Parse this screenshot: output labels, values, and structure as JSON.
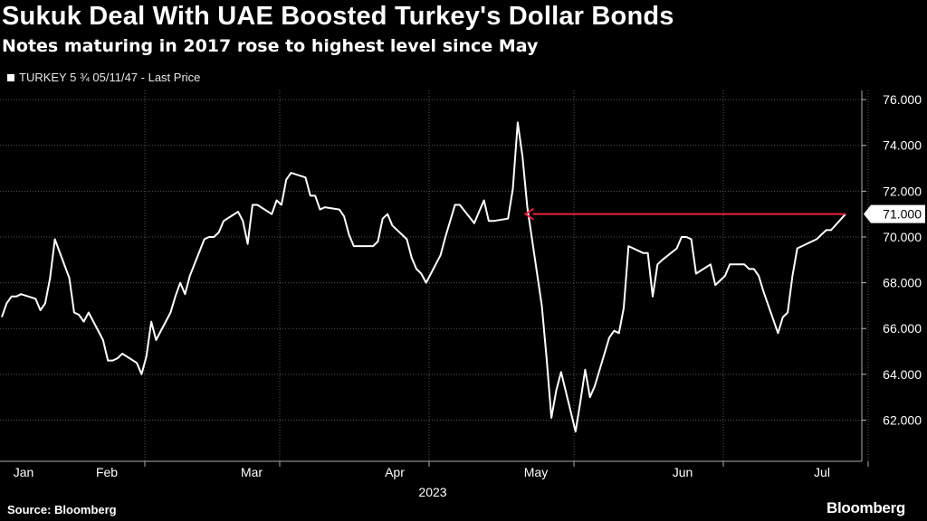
{
  "header": {
    "title": "Sukuk Deal With UAE Boosted Turkey's Dollar Bonds",
    "subtitle": "Notes maturing in 2017 rose to highest level since May"
  },
  "footer": {
    "source": "Source: Bloomberg",
    "logo": "Bloomberg"
  },
  "chart_data": {
    "type": "line",
    "title": "Sukuk Deal With UAE Boosted Turkey's Dollar Bonds",
    "subtitle": "Notes maturing in 2017 rose to highest level since May",
    "legend": {
      "placement": "top-left",
      "entries": [
        "TURKEY 5 ¾ 05/11/47 - Last Price"
      ]
    },
    "x_ticks": [
      "Jan",
      "Feb",
      "Mar",
      "Apr",
      "May",
      "Jun",
      "Jul"
    ],
    "x_year_label": "2023",
    "y_ticks": [
      62,
      64,
      66,
      68,
      70,
      72,
      74,
      76
    ],
    "y_tick_labels": [
      "62.000",
      "64.000",
      "66.000",
      "68.000",
      "70.000",
      "72.000",
      "74.000",
      "76.000"
    ],
    "ylim": [
      60.2,
      76.4
    ],
    "y_axis_side": "right",
    "grid": true,
    "series": [
      {
        "name": "TURKEY 5 ¾ 05/11/47 - Last Price",
        "color": "#ffffff",
        "points": [
          [
            "2023-01-02",
            66.5
          ],
          [
            "2023-01-03",
            67.1
          ],
          [
            "2023-01-04",
            67.4
          ],
          [
            "2023-01-05",
            67.4
          ],
          [
            "2023-01-06",
            67.5
          ],
          [
            "2023-01-09",
            67.3
          ],
          [
            "2023-01-10",
            66.8
          ],
          [
            "2023-01-11",
            67.1
          ],
          [
            "2023-01-12",
            68.2
          ],
          [
            "2023-01-13",
            69.9
          ],
          [
            "2023-01-16",
            68.2
          ],
          [
            "2023-01-17",
            66.7
          ],
          [
            "2023-01-18",
            66.6
          ],
          [
            "2023-01-19",
            66.3
          ],
          [
            "2023-01-20",
            66.7
          ],
          [
            "2023-01-23",
            65.5
          ],
          [
            "2023-01-24",
            64.6
          ],
          [
            "2023-01-25",
            64.6
          ],
          [
            "2023-01-26",
            64.7
          ],
          [
            "2023-01-27",
            64.9
          ],
          [
            "2023-01-30",
            64.5
          ],
          [
            "2023-01-31",
            64.0
          ],
          [
            "2023-02-01",
            64.8
          ],
          [
            "2023-02-02",
            66.3
          ],
          [
            "2023-02-03",
            65.5
          ],
          [
            "2023-02-06",
            66.7
          ],
          [
            "2023-02-07",
            67.4
          ],
          [
            "2023-02-08",
            68.0
          ],
          [
            "2023-02-09",
            67.5
          ],
          [
            "2023-02-10",
            68.3
          ],
          [
            "2023-02-13",
            69.9
          ],
          [
            "2023-02-14",
            70.0
          ],
          [
            "2023-02-15",
            70.0
          ],
          [
            "2023-02-16",
            70.2
          ],
          [
            "2023-02-17",
            70.7
          ],
          [
            "2023-02-20",
            71.1
          ],
          [
            "2023-02-21",
            70.7
          ],
          [
            "2023-02-22",
            69.7
          ],
          [
            "2023-02-23",
            71.4
          ],
          [
            "2023-02-24",
            71.4
          ],
          [
            "2023-02-27",
            71.0
          ],
          [
            "2023-02-28",
            71.6
          ],
          [
            "2023-03-01",
            71.4
          ],
          [
            "2023-03-02",
            72.5
          ],
          [
            "2023-03-03",
            72.8
          ],
          [
            "2023-03-06",
            72.6
          ],
          [
            "2023-03-07",
            71.8
          ],
          [
            "2023-03-08",
            71.8
          ],
          [
            "2023-03-09",
            71.2
          ],
          [
            "2023-03-10",
            71.3
          ],
          [
            "2023-03-13",
            71.2
          ],
          [
            "2023-03-14",
            70.9
          ],
          [
            "2023-03-15",
            70.1
          ],
          [
            "2023-03-16",
            69.6
          ],
          [
            "2023-03-17",
            69.6
          ],
          [
            "2023-03-20",
            69.6
          ],
          [
            "2023-03-21",
            69.8
          ],
          [
            "2023-03-22",
            70.8
          ],
          [
            "2023-03-23",
            71.0
          ],
          [
            "2023-03-24",
            70.5
          ],
          [
            "2023-03-27",
            69.9
          ],
          [
            "2023-03-28",
            69.1
          ],
          [
            "2023-03-29",
            68.6
          ],
          [
            "2023-03-30",
            68.4
          ],
          [
            "2023-03-31",
            68.0
          ],
          [
            "2023-04-03",
            69.2
          ],
          [
            "2023-04-04",
            70.0
          ],
          [
            "2023-04-05",
            70.7
          ],
          [
            "2023-04-06",
            71.4
          ],
          [
            "2023-04-07",
            71.4
          ],
          [
            "2023-04-10",
            70.6
          ],
          [
            "2023-04-11",
            71.1
          ],
          [
            "2023-04-12",
            71.6
          ],
          [
            "2023-04-13",
            70.7
          ],
          [
            "2023-04-14",
            70.7
          ],
          [
            "2023-04-17",
            70.8
          ],
          [
            "2023-04-18",
            72.1
          ],
          [
            "2023-04-19",
            75.0
          ],
          [
            "2023-04-20",
            73.5
          ],
          [
            "2023-04-21",
            71.3
          ],
          [
            "2023-04-24",
            67.0
          ],
          [
            "2023-04-25",
            64.7
          ],
          [
            "2023-04-26",
            62.1
          ],
          [
            "2023-04-27",
            63.3
          ],
          [
            "2023-04-28",
            64.1
          ],
          [
            "2023-05-01",
            61.5
          ],
          [
            "2023-05-02",
            62.8
          ],
          [
            "2023-05-03",
            64.2
          ],
          [
            "2023-05-04",
            63.0
          ],
          [
            "2023-05-05",
            63.5
          ],
          [
            "2023-05-08",
            65.6
          ],
          [
            "2023-05-09",
            65.9
          ],
          [
            "2023-05-10",
            65.8
          ],
          [
            "2023-05-11",
            66.9
          ],
          [
            "2023-05-12",
            69.6
          ],
          [
            "2023-05-15",
            69.3
          ],
          [
            "2023-05-16",
            69.3
          ],
          [
            "2023-05-17",
            67.4
          ],
          [
            "2023-05-18",
            68.8
          ],
          [
            "2023-05-19",
            69.0
          ],
          [
            "2023-05-22",
            69.5
          ],
          [
            "2023-05-23",
            70.0
          ],
          [
            "2023-05-24",
            70.0
          ],
          [
            "2023-05-25",
            69.9
          ],
          [
            "2023-05-26",
            68.4
          ],
          [
            "2023-05-29",
            68.8
          ],
          [
            "2023-05-30",
            67.9
          ],
          [
            "2023-05-31",
            68.1
          ],
          [
            "2023-06-01",
            68.3
          ],
          [
            "2023-06-02",
            68.8
          ],
          [
            "2023-06-05",
            68.8
          ],
          [
            "2023-06-06",
            68.6
          ],
          [
            "2023-06-07",
            68.6
          ],
          [
            "2023-06-08",
            68.3
          ],
          [
            "2023-06-09",
            67.6
          ],
          [
            "2023-06-12",
            65.8
          ],
          [
            "2023-06-13",
            66.5
          ],
          [
            "2023-06-14",
            66.7
          ],
          [
            "2023-06-15",
            68.3
          ],
          [
            "2023-06-16",
            69.5
          ],
          [
            "2023-06-19",
            69.8
          ],
          [
            "2023-06-20",
            69.9
          ],
          [
            "2023-06-21",
            70.1
          ],
          [
            "2023-06-22",
            70.3
          ],
          [
            "2023-06-23",
            70.3
          ],
          [
            "2023-06-26",
            71.0
          ]
        ]
      }
    ],
    "last_value_label": "71.000",
    "annotations": [
      {
        "type": "arrow",
        "color": "#e8233d",
        "from": [
          "2023-06-26",
          71.0
        ],
        "to": [
          "2023-04-21",
          71.0
        ],
        "direction": "left"
      }
    ]
  }
}
